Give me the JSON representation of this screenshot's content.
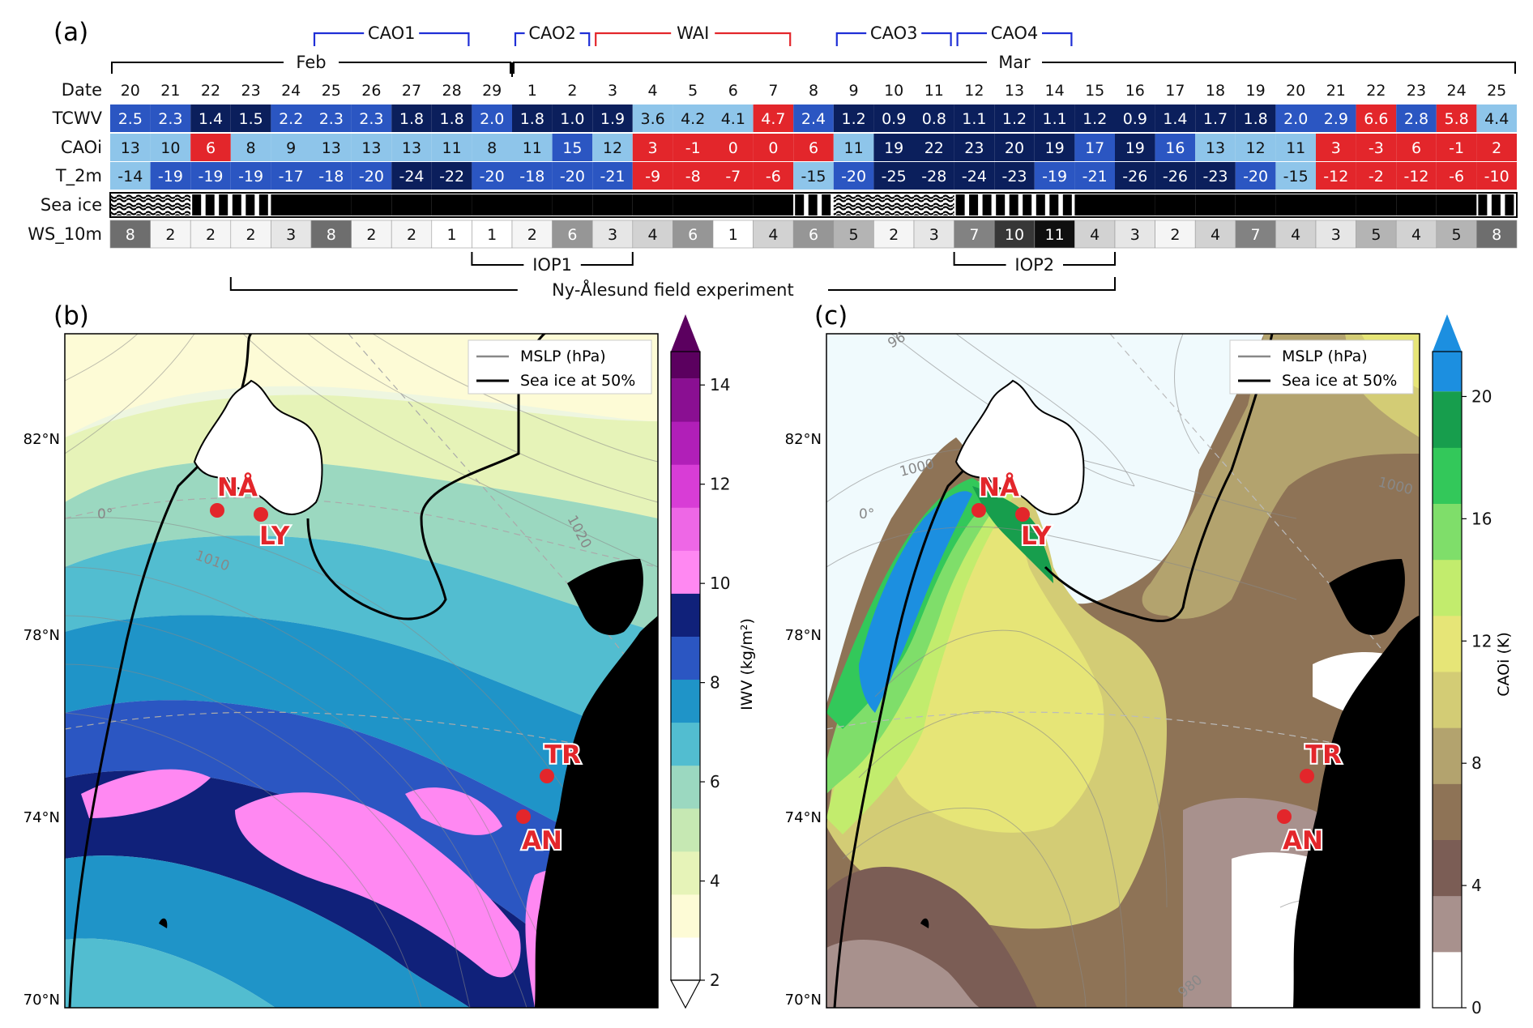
{
  "panel_labels": [
    "(a)",
    "(b)",
    "(c)"
  ],
  "chart_data": [
    {
      "type": "table",
      "panel": "(a)",
      "months": [
        {
          "label": "Feb",
          "first_col": 0,
          "last_col": 9
        },
        {
          "label": "Mar",
          "first_col": 10,
          "last_col": 34
        }
      ],
      "events": [
        {
          "label": "CAO1",
          "first_col": 5,
          "last_col": 8,
          "color": "#1f2fd6"
        },
        {
          "label": "CAO2",
          "first_col": 10,
          "last_col": 11,
          "color": "#1f2fd6"
        },
        {
          "label": "WAI",
          "first_col": 12,
          "last_col": 16,
          "color": "#e3262b"
        },
        {
          "label": "CAO3",
          "first_col": 18,
          "last_col": 20,
          "color": "#1f2fd6"
        },
        {
          "label": "CAO4",
          "first_col": 21,
          "last_col": 23,
          "color": "#1f2fd6"
        }
      ],
      "row_labels": [
        "Date",
        "TCWV",
        "CAOi",
        "T_2m",
        "Sea ice",
        "WS_10m"
      ],
      "dates": [
        "20",
        "21",
        "22",
        "23",
        "24",
        "25",
        "26",
        "27",
        "28",
        "29",
        "1",
        "2",
        "3",
        "4",
        "5",
        "6",
        "7",
        "8",
        "9",
        "10",
        "11",
        "12",
        "13",
        "14",
        "15",
        "16",
        "17",
        "18",
        "19",
        "20",
        "21",
        "22",
        "23",
        "24",
        "25"
      ],
      "TCWV": [
        2.5,
        2.3,
        1.4,
        1.5,
        2.2,
        2.3,
        2.3,
        1.8,
        1.8,
        2.0,
        1.8,
        1.0,
        1.9,
        3.6,
        4.2,
        4.1,
        4.7,
        2.4,
        1.2,
        0.9,
        0.8,
        1.1,
        1.2,
        1.1,
        1.2,
        0.9,
        1.4,
        1.7,
        1.8,
        2.0,
        2.9,
        6.6,
        2.8,
        5.8,
        4.4
      ],
      "TCWV_text": [
        "2.5",
        "2.3",
        "1.4",
        "1.5",
        "2.2",
        "2.3",
        "2.3",
        "1.8",
        "1.8",
        "2.0",
        "1.8",
        "1.0",
        "1.9",
        "3.6",
        "4.2",
        "4.1",
        "4.7",
        "2.4",
        "1.2",
        "0.9",
        "0.8",
        "1.1",
        "1.2",
        "1.1",
        "1.2",
        "0.9",
        "1.4",
        "1.7",
        "1.8",
        "2.0",
        "2.9",
        "6.6",
        "2.8",
        "5.8",
        "4.4"
      ],
      "CAOi": [
        13,
        10,
        6,
        8,
        9,
        13,
        13,
        13,
        11,
        8,
        11,
        15,
        12,
        3,
        -1,
        0,
        0,
        6,
        11,
        19,
        22,
        23,
        20,
        19,
        17,
        19,
        16,
        13,
        12,
        11,
        3,
        -3,
        6,
        -1,
        2
      ],
      "T_2m": [
        -14,
        -19,
        -19,
        -19,
        -17,
        -18,
        -20,
        -24,
        -22,
        -20,
        -18,
        -20,
        -21,
        -9,
        -8,
        -7,
        -6,
        -15,
        -20,
        -25,
        -28,
        -24,
        -23,
        -19,
        -21,
        -26,
        -26,
        -23,
        -20,
        -15,
        -12,
        -2,
        -12,
        -6,
        -10
      ],
      "WS_10m": [
        8,
        2,
        2,
        2,
        3,
        8,
        2,
        2,
        1,
        1,
        2,
        6,
        3,
        4,
        6,
        1,
        4,
        6,
        5,
        2,
        3,
        7,
        10,
        11,
        4,
        3,
        2,
        4,
        7,
        4,
        3,
        5,
        4,
        5,
        8
      ],
      "sea_ice": [
        "wave",
        "wave",
        "bars",
        "bars",
        "solid",
        "solid",
        "solid",
        "solid",
        "solid",
        "solid",
        "solid",
        "solid",
        "solid",
        "solid",
        "solid",
        "solid",
        "solid",
        "bars",
        "wave",
        "wave",
        "wave",
        "bars",
        "bars",
        "bars",
        "solid",
        "solid",
        "solid",
        "solid",
        "solid",
        "solid",
        "solid",
        "solid",
        "solid",
        "solid",
        "bars"
      ],
      "campaigns": [
        {
          "label": "IOP1",
          "first_col": 9,
          "last_col": 12
        },
        {
          "label": "IOP2",
          "first_col": 21,
          "last_col": 24
        },
        {
          "label": "Ny-Ålesund field experiment",
          "first_col": 3,
          "last_col": 24
        }
      ],
      "colors": {
        "warm": "#e3262b",
        "cold_strong": "#0b1f5c",
        "cold_mid": "#2b56c2",
        "cold_light": "#8ec5ea"
      }
    },
    {
      "type": "heatmap",
      "panel": "(b)",
      "variable": "IWV",
      "colorbar_label": "IWV (kg/m²)",
      "colorbar_ticks": [
        2,
        4,
        6,
        8,
        10,
        12,
        14
      ],
      "colorbar_range": [
        2,
        15
      ],
      "colorbar_colors": [
        "#ffffff",
        "#fdfbd6",
        "#e6f3b8",
        "#c6e8b3",
        "#9bd8c0",
        "#52bdd0",
        "#1f94c8",
        "#2b56c2",
        "#10217a",
        "#ff88f2",
        "#ee67e6",
        "#d83dd6",
        "#b11fb8",
        "#8a0f92",
        "#5b005f"
      ],
      "legend": [
        "MSLP (hPa)",
        "Sea ice at 50%"
      ],
      "lat_ticks": [
        "82°N",
        "78°N",
        "74°N",
        "70°N"
      ],
      "contour_labels": [
        "1020",
        "1010",
        "0°"
      ],
      "stations": [
        "NÅ",
        "LY",
        "TR",
        "AN"
      ]
    },
    {
      "type": "heatmap",
      "panel": "(c)",
      "variable": "CAOi",
      "colorbar_label": "CAOi (K)",
      "colorbar_ticks": [
        0,
        4,
        8,
        12,
        16,
        20
      ],
      "colorbar_range": [
        0,
        22
      ],
      "colorbar_colors": [
        "#ffffff",
        "#a8918d",
        "#7b5d55",
        "#8e7356",
        "#b3a36e",
        "#d3cc75",
        "#e6e577",
        "#c2ec6d",
        "#7fde6a",
        "#33c85a",
        "#179e4d",
        "#1c8fe0"
      ],
      "legend": [
        "MSLP (hPa)",
        "Sea ice at 50%"
      ],
      "lat_ticks": [
        "82°N",
        "78°N",
        "74°N",
        "70°N"
      ],
      "contour_labels": [
        "1000",
        "1000",
        "980",
        "0°",
        "96"
      ],
      "stations": [
        "NÅ",
        "LY",
        "TR",
        "AN"
      ]
    }
  ]
}
